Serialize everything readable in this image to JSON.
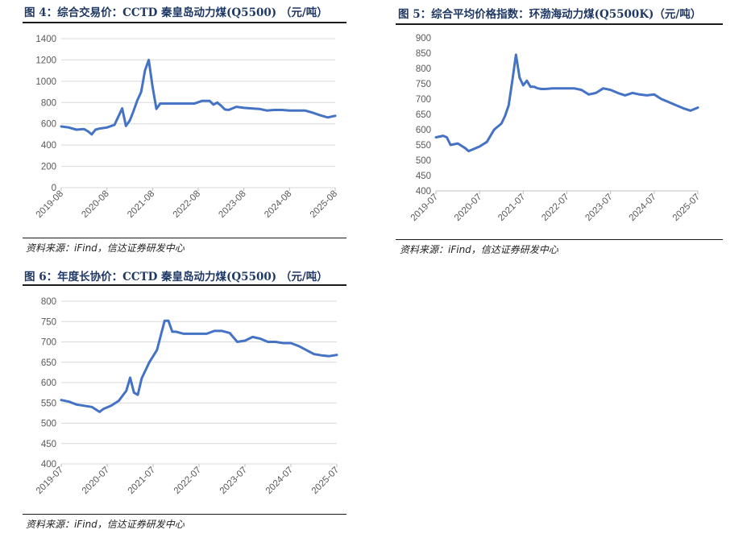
{
  "panels": [
    {
      "title": "图 4：综合交易价：CCTD 秦皇岛动力煤(Q5500)  （元/吨）",
      "source": "资料来源：iFind，信达证券研发中心"
    },
    {
      "title": "图 5：综合平均价格指数：环渤海动力煤(Q5500K)（元/吨）",
      "source": "资料来源：iFind，信达证券研发中心"
    },
    {
      "title": "图 6：年度长协价：CCTD 秦皇岛动力煤(Q5500)  （元/吨）",
      "source": "资料来源：iFind，信达证券研发中心"
    }
  ],
  "chart_data": [
    {
      "type": "line",
      "title": "综合交易价：CCTD 秦皇岛动力煤(Q5500)",
      "xlabel": "",
      "ylabel": "",
      "color": "#4472c4",
      "ylim": [
        0,
        1400
      ],
      "yticks": [
        0,
        200,
        400,
        600,
        800,
        1000,
        1200,
        1400
      ],
      "xticks": [
        "2019-08",
        "2020-08",
        "2021-08",
        "2022-08",
        "2023-08",
        "2024-08",
        "2025-08"
      ],
      "xlim": [
        "2019-08",
        "2025-08"
      ],
      "grid": true,
      "x": [
        "2019-08",
        "2019-10",
        "2019-12",
        "2020-02",
        "2020-03",
        "2020-04",
        "2020-05",
        "2020-06",
        "2020-08",
        "2020-10",
        "2020-12",
        "2021-01",
        "2021-02",
        "2021-03",
        "2021-04",
        "2021-05",
        "2021-06",
        "2021-07",
        "2021-08",
        "2021-09",
        "2021-10",
        "2021-11",
        "2021-12",
        "2022-01",
        "2022-03",
        "2022-05",
        "2022-07",
        "2022-09",
        "2022-11",
        "2022-12",
        "2023-01",
        "2023-02",
        "2023-03",
        "2023-04",
        "2023-06",
        "2023-08",
        "2023-10",
        "2023-12",
        "2024-02",
        "2024-04",
        "2024-06",
        "2024-08",
        "2024-10",
        "2024-12",
        "2025-02",
        "2025-04",
        "2025-06",
        "2025-08"
      ],
      "y": [
        575,
        565,
        545,
        550,
        530,
        500,
        545,
        555,
        565,
        590,
        745,
        580,
        630,
        720,
        820,
        900,
        1100,
        1200,
        950,
        740,
        790,
        790,
        790,
        790,
        790,
        790,
        790,
        815,
        815,
        780,
        800,
        770,
        735,
        730,
        760,
        750,
        745,
        740,
        725,
        730,
        730,
        725,
        725,
        725,
        705,
        680,
        660,
        675
      ]
    },
    {
      "type": "line",
      "title": "综合平均价格指数：环渤海动力煤(Q5500K)",
      "xlabel": "",
      "ylabel": "",
      "color": "#4472c4",
      "ylim": [
        400,
        900
      ],
      "yticks": [
        400,
        450,
        500,
        550,
        600,
        650,
        700,
        750,
        800,
        850,
        900
      ],
      "xticks": [
        "2019-07",
        "2020-07",
        "2021-07",
        "2022-07",
        "2023-07",
        "2024-07",
        "2025-07"
      ],
      "xlim": [
        "2019-07",
        "2025-07"
      ],
      "grid": false,
      "x": [
        "2019-07",
        "2019-09",
        "2019-10",
        "2019-11",
        "2020-01",
        "2020-03",
        "2020-04",
        "2020-05",
        "2020-07",
        "2020-09",
        "2020-11",
        "2021-01",
        "2021-02",
        "2021-03",
        "2021-04",
        "2021-05",
        "2021-06",
        "2021-07",
        "2021-08",
        "2021-09",
        "2021-10",
        "2021-11",
        "2021-12",
        "2022-01",
        "2022-03",
        "2022-05",
        "2022-07",
        "2022-09",
        "2022-11",
        "2023-01",
        "2023-03",
        "2023-05",
        "2023-07",
        "2023-09",
        "2023-11",
        "2024-01",
        "2024-03",
        "2024-05",
        "2024-07",
        "2024-09",
        "2024-11",
        "2025-01",
        "2025-03",
        "2025-05",
        "2025-07"
      ],
      "y": [
        575,
        580,
        575,
        550,
        555,
        540,
        530,
        535,
        545,
        560,
        600,
        620,
        645,
        680,
        760,
        845,
        770,
        745,
        760,
        740,
        740,
        735,
        733,
        733,
        735,
        735,
        735,
        735,
        730,
        715,
        720,
        735,
        730,
        720,
        712,
        720,
        715,
        712,
        715,
        700,
        690,
        680,
        670,
        662,
        672
      ]
    },
    {
      "type": "line",
      "title": "年度长协价：CCTD 秦皇岛动力煤(Q5500)",
      "xlabel": "",
      "ylabel": "",
      "color": "#4472c4",
      "ylim": [
        400,
        800
      ],
      "yticks": [
        400,
        450,
        500,
        550,
        600,
        650,
        700,
        750,
        800
      ],
      "xticks": [
        "2019-07",
        "2020-07",
        "2021-07",
        "2022-07",
        "2023-07",
        "2024-07",
        "2025-07"
      ],
      "xlim": [
        "2019-07",
        "2025-07"
      ],
      "grid": true,
      "x": [
        "2019-07",
        "2019-09",
        "2019-11",
        "2020-01",
        "2020-03",
        "2020-05",
        "2020-06",
        "2020-08",
        "2020-10",
        "2020-12",
        "2021-01",
        "2021-02",
        "2021-03",
        "2021-04",
        "2021-06",
        "2021-08",
        "2021-10",
        "2021-11",
        "2021-12",
        "2022-01",
        "2022-03",
        "2022-05",
        "2022-07",
        "2022-09",
        "2022-11",
        "2023-01",
        "2023-03",
        "2023-05",
        "2023-07",
        "2023-09",
        "2023-11",
        "2024-01",
        "2024-03",
        "2024-05",
        "2024-07",
        "2024-09",
        "2024-11",
        "2025-01",
        "2025-03",
        "2025-05",
        "2025-07"
      ],
      "y": [
        557,
        553,
        546,
        543,
        540,
        528,
        535,
        543,
        555,
        580,
        612,
        575,
        570,
        610,
        650,
        680,
        752,
        752,
        725,
        725,
        720,
        720,
        720,
        720,
        727,
        727,
        722,
        700,
        703,
        712,
        708,
        700,
        700,
        697,
        697,
        690,
        680,
        670,
        667,
        665,
        668
      ]
    }
  ]
}
